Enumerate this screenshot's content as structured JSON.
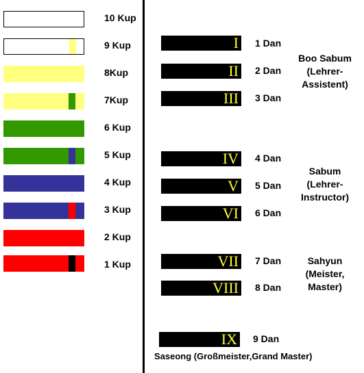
{
  "colors": {
    "white": "#ffffff",
    "yellow": "#ffff80",
    "green": "#339900",
    "blue": "#333399",
    "red": "#ff0000",
    "black": "#000000",
    "numeral": "#ffff33"
  },
  "kup": [
    {
      "label": "10 Kup",
      "color": "white",
      "stripe": null
    },
    {
      "label": "9 Kup",
      "color": "white",
      "stripe": "yellow"
    },
    {
      "label": "8Kup",
      "color": "yellow",
      "stripe": null
    },
    {
      "label": "7Kup",
      "color": "yellow",
      "stripe": "green"
    },
    {
      "label": "6 Kup",
      "color": "green",
      "stripe": null
    },
    {
      "label": "5 Kup",
      "color": "green",
      "stripe": "blue"
    },
    {
      "label": "4 Kup",
      "color": "blue",
      "stripe": null
    },
    {
      "label": "3 Kup",
      "color": "blue",
      "stripe": "red"
    },
    {
      "label": "2 Kup",
      "color": "red",
      "stripe": null
    },
    {
      "label": "1 Kup",
      "color": "red",
      "stripe": "black"
    }
  ],
  "dan": [
    {
      "numeral": "I",
      "label": "1 Dan"
    },
    {
      "numeral": "II",
      "label": "2 Dan"
    },
    {
      "numeral": "III",
      "label": "3 Dan"
    },
    {
      "numeral": "IV",
      "label": "4 Dan"
    },
    {
      "numeral": "V",
      "label": "5 Dan"
    },
    {
      "numeral": "VI",
      "label": "6 Dan"
    },
    {
      "numeral": "VII",
      "label": "7 Dan"
    },
    {
      "numeral": "VIII",
      "label": "8 Dan"
    },
    {
      "numeral": "IX",
      "label": "9 Dan"
    }
  ],
  "titles": {
    "boo_sabum": [
      "Boo Sabum",
      "(Lehrer-",
      "Assistent)"
    ],
    "sabum": [
      "Sabum",
      "(Lehrer-",
      "Instructor)"
    ],
    "sahyun": [
      "Sahyun",
      "(Meister,",
      "Master)"
    ],
    "saseong": "Saseong (Großmeister,Grand Master)"
  }
}
